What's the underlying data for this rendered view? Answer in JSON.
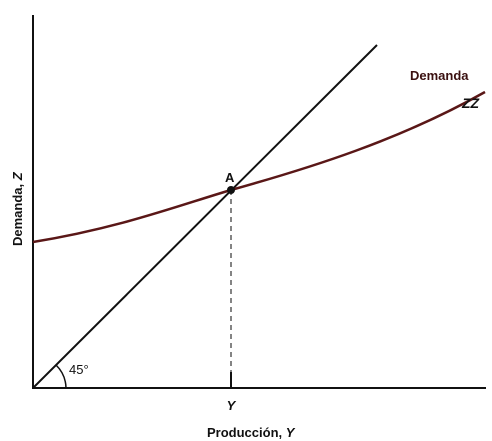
{
  "curve": {
    "name": "Demanda",
    "symbol": "ZZ"
  },
  "point": {
    "label": "A"
  },
  "angle": {
    "label": "45°"
  },
  "x_tick": {
    "label": "Y"
  },
  "axis_labels": {
    "x": {
      "text": "Producción,",
      "symbol": "Y"
    },
    "y": {
      "text": "Demanda,",
      "symbol": "Z"
    }
  }
}
